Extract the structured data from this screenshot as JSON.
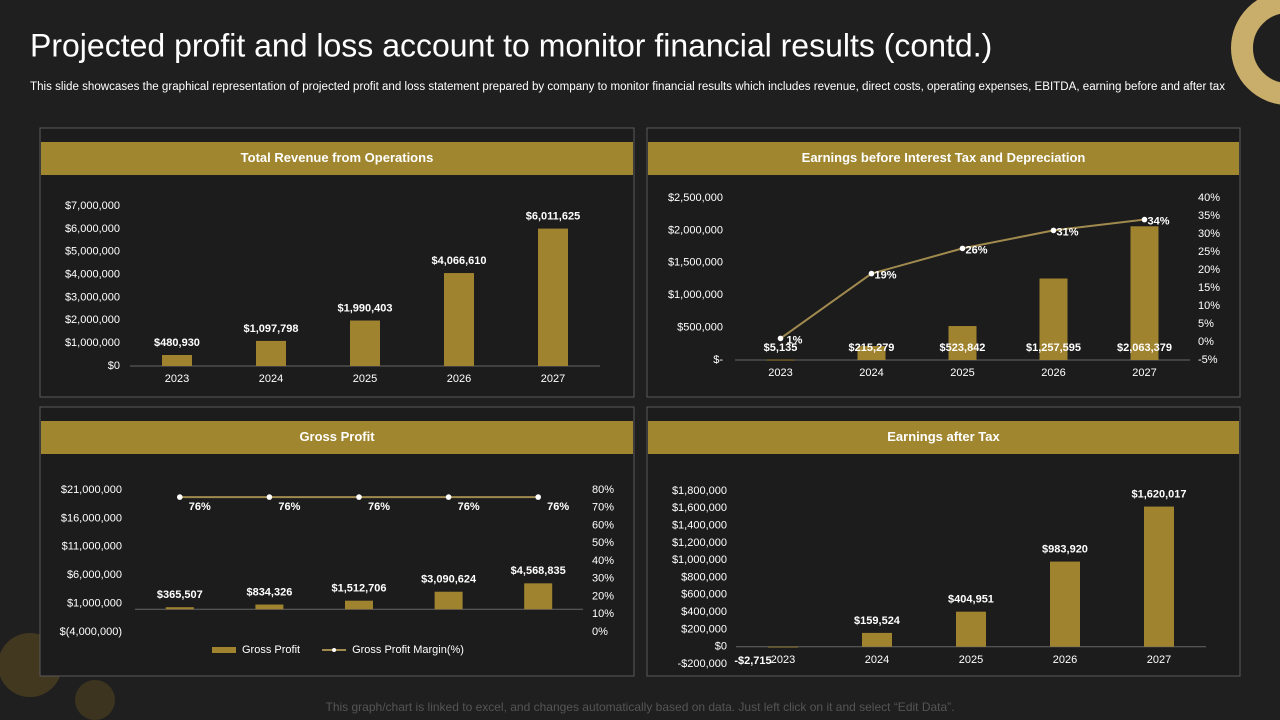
{
  "title": "Projected profit and loss account to monitor financial results (contd.)",
  "subtitle": "This slide showcases the graphical representation of projected profit and loss statement prepared by company to monitor financial results which includes revenue, direct costs, operating expenses, EBITDA,  earning before and after tax",
  "footer": "This graph/chart is linked to excel,  and changes automatically based on data. Just left click on it and select “Edit Data”.",
  "chart_data": [
    {
      "type": "bar",
      "title": "Total Revenue from Operations",
      "categories": [
        "2023",
        "2024",
        "2025",
        "2026",
        "2027"
      ],
      "series": [
        {
          "color": "#a0832f",
          "values": [
            480930,
            1097798,
            1990403,
            4066610,
            6011625
          ],
          "value_labels": [
            "$480,930",
            "$1,097,798",
            "$1,990,403",
            "$4,066,610",
            "$6,011,625"
          ]
        }
      ],
      "ylim": [
        0,
        7000000
      ],
      "yticks": [
        {
          "value": 0,
          "label": "$0"
        },
        {
          "value": 1000000,
          "label": "$1,000,000"
        },
        {
          "value": 2000000,
          "label": "$2,000,000"
        },
        {
          "value": 3000000,
          "label": "$3,000,000"
        },
        {
          "value": 4000000,
          "label": "$4,000,000"
        },
        {
          "value": 5000000,
          "label": "$5,000,000"
        },
        {
          "value": 6000000,
          "label": "$6,000,000"
        },
        {
          "value": 7000000,
          "label": "$7,000,000"
        }
      ]
    },
    {
      "type": "combo",
      "title": "Earnings before Interest Tax and Depreciation",
      "categories": [
        "2023",
        "2024",
        "2025",
        "2026",
        "2027"
      ],
      "series": [
        {
          "color": "#a0832f",
          "values": [
            5135,
            215279,
            523842,
            1257595,
            2063379
          ],
          "value_labels": [
            "$5,135",
            "$215,279",
            "$523,842",
            "$1,257,595",
            "$2,063,379"
          ]
        },
        {
          "color": "#a08a4e",
          "axis": "y2",
          "values": [
            1,
            19,
            26,
            31,
            34
          ],
          "value_labels": [
            "1%",
            "19%",
            "26%",
            "31%",
            "34%"
          ]
        }
      ],
      "ylim": [
        0,
        2500000
      ],
      "yticks": [
        {
          "value": 0,
          "label": "$-"
        },
        {
          "value": 500000,
          "label": "$500,000"
        },
        {
          "value": 1000000,
          "label": "$1,000,000"
        },
        {
          "value": 1500000,
          "label": "$1,500,000"
        },
        {
          "value": 2000000,
          "label": "$2,000,000"
        },
        {
          "value": 2500000,
          "label": "$2,500,000"
        }
      ],
      "y2lim": [
        -5,
        40
      ],
      "y2ticks": [
        {
          "value": -5,
          "label": "-5%"
        },
        {
          "value": 0,
          "label": "0%"
        },
        {
          "value": 5,
          "label": "5%"
        },
        {
          "value": 10,
          "label": "10%"
        },
        {
          "value": 15,
          "label": "15%"
        },
        {
          "value": 20,
          "label": "20%"
        },
        {
          "value": 25,
          "label": "25%"
        },
        {
          "value": 30,
          "label": "30%"
        },
        {
          "value": 35,
          "label": "35%"
        },
        {
          "value": 40,
          "label": "40%"
        }
      ]
    },
    {
      "type": "combo",
      "title": "Gross Profit",
      "legend": "bottom",
      "series": [
        {
          "name": "Gross Profit",
          "color": "#a0832f",
          "values": [
            365507,
            834326,
            1512706,
            3090624,
            4568835
          ],
          "value_labels": [
            "$365,507",
            "$834,326",
            "$1,512,706",
            "$3,090,624",
            "$4,568,835"
          ]
        },
        {
          "name": "Gross Profit Margin(%)",
          "color": "#a08a4e",
          "axis": "y2",
          "values": [
            76,
            76,
            76,
            76,
            76
          ],
          "value_labels": [
            "76%",
            "76%",
            "76%",
            "76%",
            "76%"
          ]
        }
      ],
      "ylim": [
        -4000000,
        21000000
      ],
      "yticks": [
        {
          "value": -4000000,
          "label": "$(4,000,000)"
        },
        {
          "value": 1000000,
          "label": "$1,000,000"
        },
        {
          "value": 6000000,
          "label": "$6,000,000"
        },
        {
          "value": 11000000,
          "label": "$11,000,000"
        },
        {
          "value": 16000000,
          "label": "$16,000,000"
        },
        {
          "value": 21000000,
          "label": "$21,000,000"
        }
      ],
      "y2lim": [
        0,
        80
      ],
      "y2ticks": [
        {
          "value": 0,
          "label": "0%"
        },
        {
          "value": 10,
          "label": "10%"
        },
        {
          "value": 20,
          "label": "20%"
        },
        {
          "value": 30,
          "label": "30%"
        },
        {
          "value": 40,
          "label": "40%"
        },
        {
          "value": 50,
          "label": "50%"
        },
        {
          "value": 60,
          "label": "60%"
        },
        {
          "value": 70,
          "label": "70%"
        },
        {
          "value": 80,
          "label": "80%"
        }
      ]
    },
    {
      "type": "bar",
      "title": "Earnings after Tax",
      "categories": [
        "2023",
        "2024",
        "2025",
        "2026",
        "2027"
      ],
      "series": [
        {
          "color": "#a0832f",
          "values": [
            -2715,
            159524,
            404951,
            983920,
            1620017
          ],
          "value_labels": [
            "-$2,715",
            "$159,524",
            "$404,951",
            "$983,920",
            "$1,620,017"
          ]
        }
      ],
      "ylim": [
        -200000,
        1800000
      ],
      "yticks": [
        {
          "value": -200000,
          "label": "-$200,000"
        },
        {
          "value": 0,
          "label": "$0"
        },
        {
          "value": 200000,
          "label": "$200,000"
        },
        {
          "value": 400000,
          "label": "$400,000"
        },
        {
          "value": 600000,
          "label": "$600,000"
        },
        {
          "value": 800000,
          "label": "$800,000"
        },
        {
          "value": 1000000,
          "label": "$1,000,000"
        },
        {
          "value": 1200000,
          "label": "$1,200,000"
        },
        {
          "value": 1400000,
          "label": "$1,400,000"
        },
        {
          "value": 1600000,
          "label": "$1,600,000"
        },
        {
          "value": 1800000,
          "label": "$1,800,000"
        }
      ]
    }
  ]
}
